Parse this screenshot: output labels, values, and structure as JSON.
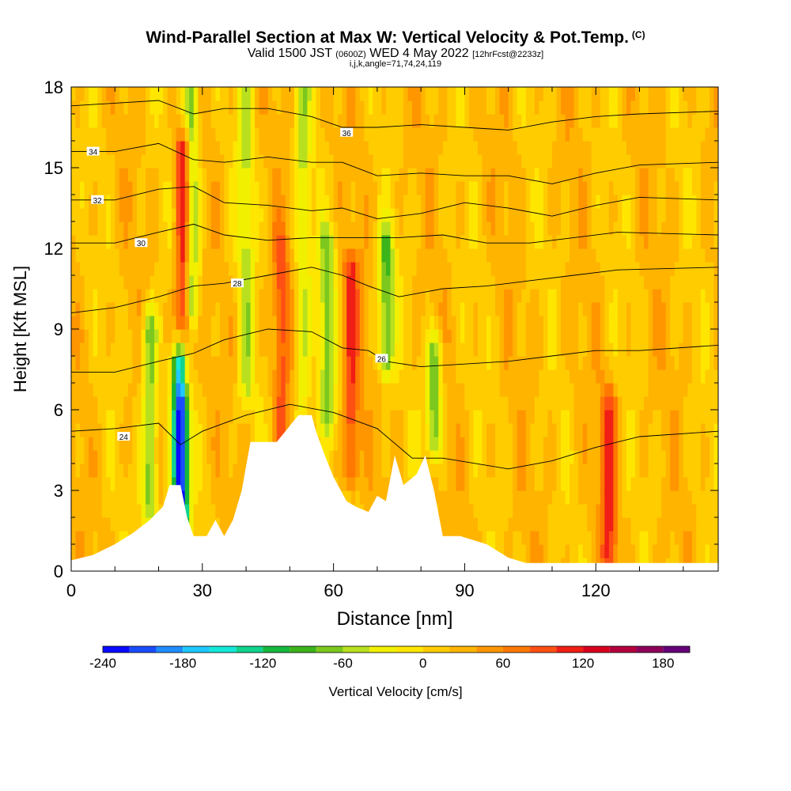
{
  "header": {
    "title": "Wind-Parallel Section at Max W: Vertical Velocity & Pot.Temp.",
    "copyright": "(C)",
    "valid_prefix": "Valid 1500 JST",
    "valid_utc": "(0600Z)",
    "valid_date": "WED 4 May 2022",
    "forecast_info": "[12hrFcst@2233z]",
    "grid_info": "i,j,k,angle=71,74,24,119"
  },
  "chart_data": {
    "type": "heatmap",
    "xlabel": "Distance [nm]",
    "ylabel": "Height [Kft MSL]",
    "xlim": [
      0,
      148
    ],
    "ylim": [
      0,
      18
    ],
    "x_ticks": [
      0,
      30,
      60,
      90,
      120
    ],
    "y_ticks": [
      0,
      3,
      6,
      9,
      12,
      15,
      18
    ],
    "colorbar": {
      "label": "Vertical Velocity [cm/s]",
      "min": -240,
      "max": 200,
      "step": 20,
      "tick_labels": [
        -240,
        -180,
        -120,
        -60,
        0,
        60,
        120,
        180
      ],
      "colors": [
        "#0a0aff",
        "#1a4cff",
        "#1f8cff",
        "#1ec8ff",
        "#14e8d8",
        "#10d38e",
        "#14b83c",
        "#3cb41c",
        "#7cc81e",
        "#b8e01e",
        "#f0f000",
        "#ffe600",
        "#ffcc00",
        "#ffb400",
        "#ff9600",
        "#ff7800",
        "#ff5014",
        "#f01e14",
        "#d8001e",
        "#b4003c",
        "#8c005a",
        "#640078"
      ]
    },
    "velocity_features": [
      {
        "x": 25,
        "y_range": [
          2.2,
          7.6
        ],
        "w": -240,
        "desc": "strong downdraft"
      },
      {
        "x": 25.7,
        "y_range": [
          7.5,
          15.5
        ],
        "w": 140,
        "desc": "strong updraft"
      },
      {
        "x": 18,
        "y_range": [
          2.5,
          9
        ],
        "w": -80
      },
      {
        "x": 27.5,
        "y_range": [
          10,
          18
        ],
        "w": -80
      },
      {
        "x": 40,
        "y_range": [
          7,
          18
        ],
        "w": -40
      },
      {
        "x": 48,
        "y_range": [
          5,
          12
        ],
        "w": 80
      },
      {
        "x": 53,
        "y_range": [
          6,
          18
        ],
        "w": -40
      },
      {
        "x": 58.5,
        "y_range": [
          6,
          12
        ],
        "w": -60
      },
      {
        "x": 64,
        "y_range": [
          4,
          11
        ],
        "w": 100
      },
      {
        "x": 72,
        "y_range": [
          8,
          12
        ],
        "w": -80
      },
      {
        "x": 83,
        "y_range": [
          5,
          8
        ],
        "w": -80
      },
      {
        "x": 123,
        "y_range": [
          0.5,
          6
        ],
        "w": 100
      }
    ],
    "terrain_kft": [
      [
        0,
        0.4
      ],
      [
        5,
        0.6
      ],
      [
        10,
        1.0
      ],
      [
        14,
        1.4
      ],
      [
        18,
        1.9
      ],
      [
        21,
        2.4
      ],
      [
        22.5,
        3.2
      ],
      [
        25,
        3.2
      ],
      [
        26.5,
        2.0
      ],
      [
        28,
        1.3
      ],
      [
        31,
        1.3
      ],
      [
        33,
        1.9
      ],
      [
        35,
        1.3
      ],
      [
        37,
        1.9
      ],
      [
        39,
        3.0
      ],
      [
        41,
        4.8
      ],
      [
        47,
        4.8
      ],
      [
        50,
        5.4
      ],
      [
        52,
        5.8
      ],
      [
        55,
        5.8
      ],
      [
        56,
        5.2
      ],
      [
        58,
        4.3
      ],
      [
        60,
        3.5
      ],
      [
        63,
        2.6
      ],
      [
        65,
        2.4
      ],
      [
        68,
        2.2
      ],
      [
        70,
        2.8
      ],
      [
        72,
        2.6
      ],
      [
        74,
        4.3
      ],
      [
        76,
        3.2
      ],
      [
        79,
        3.6
      ],
      [
        81,
        4.3
      ],
      [
        83,
        3.0
      ],
      [
        85,
        1.3
      ],
      [
        89,
        1.3
      ],
      [
        95,
        1.0
      ],
      [
        100,
        0.5
      ],
      [
        104,
        0.3
      ],
      [
        148,
        0.3
      ]
    ],
    "theta_contours": [
      {
        "label": "24",
        "label_at": [
          12,
          5.0
        ],
        "points": [
          [
            0,
            5.2
          ],
          [
            10,
            5.3
          ],
          [
            20,
            5.5
          ],
          [
            25,
            4.7
          ],
          [
            30,
            5.2
          ],
          [
            40,
            5.8
          ],
          [
            50,
            6.2
          ],
          [
            60,
            5.9
          ],
          [
            70,
            5.3
          ],
          [
            78,
            4.2
          ],
          [
            85,
            4.2
          ],
          [
            100,
            3.8
          ],
          [
            110,
            4.1
          ],
          [
            120,
            4.6
          ],
          [
            130,
            5.0
          ],
          [
            148,
            5.2
          ]
        ]
      },
      {
        "label": "26",
        "label_at": [
          71,
          7.9
        ],
        "points": [
          [
            0,
            7.4
          ],
          [
            10,
            7.4
          ],
          [
            20,
            7.8
          ],
          [
            28,
            8.1
          ],
          [
            35,
            8.6
          ],
          [
            45,
            9.0
          ],
          [
            55,
            8.9
          ],
          [
            62,
            8.3
          ],
          [
            68,
            8.2
          ],
          [
            72,
            7.8
          ],
          [
            80,
            7.6
          ],
          [
            90,
            7.7
          ],
          [
            100,
            7.8
          ],
          [
            110,
            8.0
          ],
          [
            120,
            8.2
          ],
          [
            130,
            8.2
          ],
          [
            148,
            8.4
          ]
        ]
      },
      {
        "label": "28",
        "label_at": [
          38,
          10.7
        ],
        "points": [
          [
            0,
            9.6
          ],
          [
            10,
            9.8
          ],
          [
            20,
            10.2
          ],
          [
            28,
            10.6
          ],
          [
            35,
            10.7
          ],
          [
            45,
            11.0
          ],
          [
            55,
            11.3
          ],
          [
            62,
            11.0
          ],
          [
            68,
            10.6
          ],
          [
            75,
            10.2
          ],
          [
            85,
            10.5
          ],
          [
            95,
            10.6
          ],
          [
            105,
            10.8
          ],
          [
            115,
            11.0
          ],
          [
            125,
            11.2
          ],
          [
            148,
            11.3
          ]
        ]
      },
      {
        "label": "30",
        "label_at": [
          16,
          12.2
        ],
        "points": [
          [
            0,
            12.2
          ],
          [
            10,
            12.2
          ],
          [
            20,
            12.6
          ],
          [
            28,
            12.9
          ],
          [
            35,
            12.5
          ],
          [
            45,
            12.3
          ],
          [
            55,
            12.4
          ],
          [
            62,
            12.4
          ],
          [
            68,
            12.4
          ],
          [
            75,
            12.4
          ],
          [
            85,
            12.5
          ],
          [
            95,
            12.2
          ],
          [
            105,
            12.2
          ],
          [
            115,
            12.4
          ],
          [
            125,
            12.6
          ],
          [
            148,
            12.5
          ]
        ]
      },
      {
        "label": "32",
        "label_at": [
          6,
          13.8
        ],
        "points": [
          [
            0,
            13.8
          ],
          [
            10,
            13.8
          ],
          [
            20,
            14.2
          ],
          [
            28,
            14.3
          ],
          [
            35,
            13.7
          ],
          [
            45,
            13.6
          ],
          [
            55,
            13.4
          ],
          [
            62,
            13.5
          ],
          [
            70,
            13.1
          ],
          [
            80,
            13.3
          ],
          [
            90,
            13.7
          ],
          [
            100,
            13.5
          ],
          [
            110,
            13.2
          ],
          [
            120,
            13.6
          ],
          [
            130,
            13.9
          ],
          [
            148,
            13.8
          ]
        ]
      },
      {
        "label": "34",
        "label_at": [
          5,
          15.6
        ],
        "points": [
          [
            0,
            15.6
          ],
          [
            10,
            15.6
          ],
          [
            20,
            15.9
          ],
          [
            28,
            15.3
          ],
          [
            35,
            15.2
          ],
          [
            45,
            15.4
          ],
          [
            55,
            15.2
          ],
          [
            62,
            15.2
          ],
          [
            70,
            14.7
          ],
          [
            80,
            14.8
          ],
          [
            90,
            14.7
          ],
          [
            100,
            14.7
          ],
          [
            110,
            14.4
          ],
          [
            120,
            14.8
          ],
          [
            130,
            15.1
          ],
          [
            148,
            15.2
          ]
        ]
      },
      {
        "label": "36",
        "label_at": [
          63,
          16.3
        ],
        "points": [
          [
            0,
            17.3
          ],
          [
            10,
            17.4
          ],
          [
            20,
            17.5
          ],
          [
            28,
            17.0
          ],
          [
            35,
            17.2
          ],
          [
            45,
            17.2
          ],
          [
            55,
            16.9
          ],
          [
            62,
            16.5
          ],
          [
            70,
            16.5
          ],
          [
            80,
            16.6
          ],
          [
            90,
            16.5
          ],
          [
            100,
            16.4
          ],
          [
            110,
            16.7
          ],
          [
            120,
            16.9
          ],
          [
            130,
            17.0
          ],
          [
            148,
            17.1
          ]
        ]
      }
    ]
  }
}
